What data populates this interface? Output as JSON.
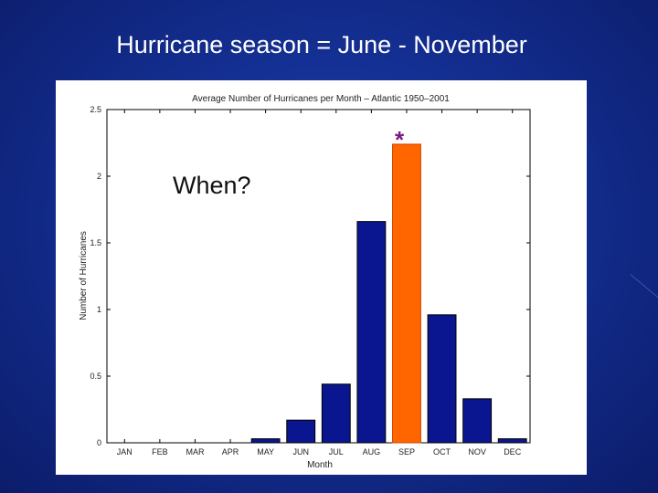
{
  "slide": {
    "title": "Hurricane season = June - November",
    "callout": "When?",
    "marker": "*"
  },
  "colors": {
    "default_bar": "#0a1690",
    "highlight_bar": "#ff6600",
    "background": "#142f92"
  },
  "chart_data": {
    "type": "bar",
    "title": "Average Number of Hurricanes per Month – Atlantic 1950–2001",
    "xlabel": "Month",
    "ylabel": "Number of Hurricanes",
    "categories": [
      "JAN",
      "FEB",
      "MAR",
      "APR",
      "MAY",
      "JUN",
      "JUL",
      "AUG",
      "SEP",
      "OCT",
      "NOV",
      "DEC"
    ],
    "values": [
      0,
      0,
      0,
      0,
      0.03,
      0.17,
      0.44,
      1.66,
      2.24,
      0.96,
      0.33,
      0.03
    ],
    "highlight_category": "SEP",
    "ylim": [
      0,
      2.5
    ],
    "yticks": [
      "0",
      "0.5",
      "1",
      "1.5",
      "2",
      "2.5"
    ],
    "ytick_values": [
      0,
      0.5,
      1,
      1.5,
      2,
      2.5
    ],
    "grid": false
  }
}
